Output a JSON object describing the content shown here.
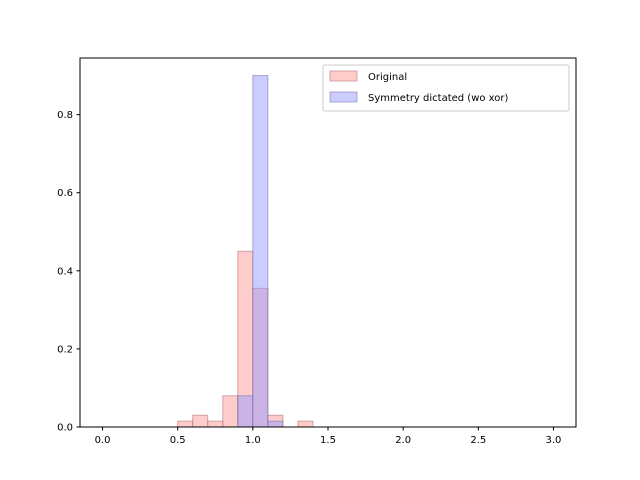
{
  "chart_data": {
    "type": "bar",
    "subtype": "histogram",
    "title": "",
    "xlabel": "",
    "ylabel": "",
    "xlim": [
      -0.15,
      3.15
    ],
    "ylim": [
      0,
      0.945
    ],
    "xticks": [
      {
        "value": 0.0,
        "label": "0.0"
      },
      {
        "value": 0.5,
        "label": "0.5"
      },
      {
        "value": 1.0,
        "label": "1.0"
      },
      {
        "value": 1.5,
        "label": "1.5"
      },
      {
        "value": 2.0,
        "label": "2.0"
      },
      {
        "value": 2.5,
        "label": "2.5"
      },
      {
        "value": 3.0,
        "label": "3.0"
      }
    ],
    "yticks": [
      {
        "value": 0.0,
        "label": "0.0"
      },
      {
        "value": 0.2,
        "label": "0.2"
      },
      {
        "value": 0.4,
        "label": "0.4"
      },
      {
        "value": 0.6,
        "label": "0.6"
      },
      {
        "value": 0.8,
        "label": "0.8"
      }
    ],
    "grid": false,
    "legend_position": "top-right",
    "series": [
      {
        "name": "Original",
        "color": "#ff9999",
        "edge_color": "#b07a7a",
        "bins": [
          {
            "start": 0.5,
            "end": 0.6,
            "value": 0.015
          },
          {
            "start": 0.6,
            "end": 0.7,
            "value": 0.03
          },
          {
            "start": 0.7,
            "end": 0.8,
            "value": 0.015
          },
          {
            "start": 0.8,
            "end": 0.9,
            "value": 0.08
          },
          {
            "start": 0.9,
            "end": 1.0,
            "value": 0.45
          },
          {
            "start": 1.0,
            "end": 1.1,
            "value": 0.355
          },
          {
            "start": 1.1,
            "end": 1.2,
            "value": 0.03
          },
          {
            "start": 1.3,
            "end": 1.4,
            "value": 0.015
          }
        ]
      },
      {
        "name": "Symmetry dictated (wo xor)",
        "color": "#9999ff",
        "edge_color": "#7a7ab0",
        "bins": [
          {
            "start": 0.9,
            "end": 1.0,
            "value": 0.08
          },
          {
            "start": 1.0,
            "end": 1.1,
            "value": 0.9
          },
          {
            "start": 1.1,
            "end": 1.2,
            "value": 0.015
          }
        ]
      }
    ]
  }
}
